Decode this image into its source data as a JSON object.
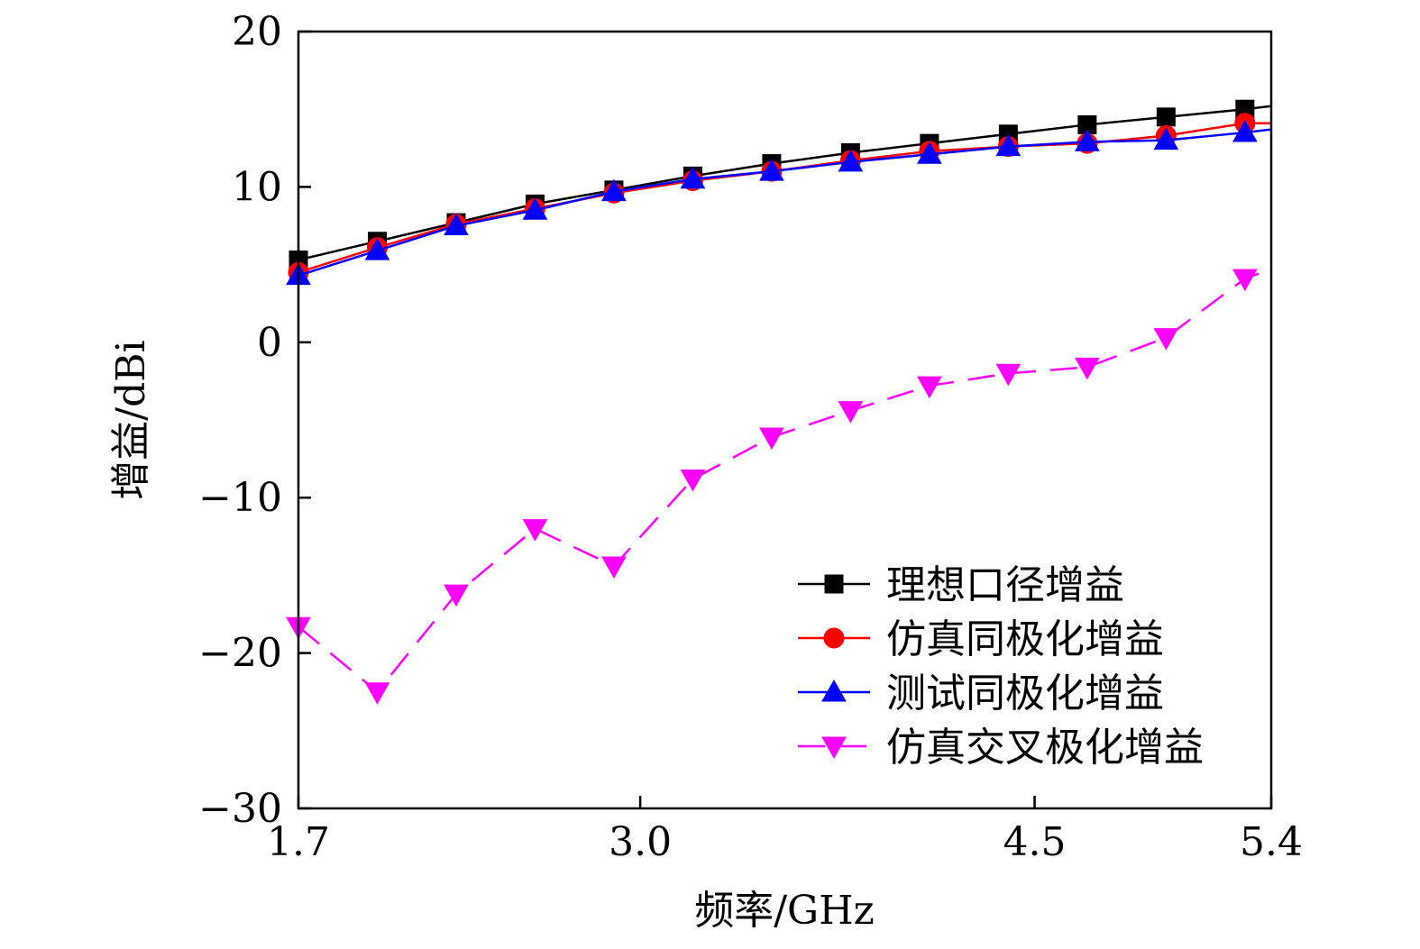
{
  "chart_data": {
    "type": "line",
    "title": "",
    "xlabel": "频率/GHz",
    "ylabel": "增益/dBi",
    "xlim": [
      1.7,
      5.4
    ],
    "ylim": [
      -30,
      20
    ],
    "xticks": [
      1.7,
      3.0,
      4.5,
      5.4
    ],
    "xtick_labels": [
      "1.7",
      "3.0",
      "4.5",
      "5.4"
    ],
    "yticks": [
      -30,
      -20,
      -10,
      0,
      10,
      20
    ],
    "ytick_labels": [
      "−30",
      "−20",
      "−10",
      "0",
      "10",
      "20"
    ],
    "grid": false,
    "legend_position": "lower-right",
    "series": [
      {
        "name": "理想口径增益",
        "color": "#000000",
        "marker": "square",
        "line": "solid",
        "x": [
          1.7,
          2.0,
          2.3,
          2.6,
          2.9,
          3.2,
          3.5,
          3.8,
          4.1,
          4.4,
          4.7,
          5.0,
          5.3,
          5.4
        ],
        "y": [
          5.3,
          6.5,
          7.7,
          8.9,
          9.8,
          10.7,
          11.5,
          12.2,
          12.8,
          13.4,
          14.0,
          14.5,
          15.0,
          15.2
        ]
      },
      {
        "name": "仿真同极化增益",
        "color": "#ff0000",
        "marker": "circle",
        "line": "solid",
        "x": [
          1.7,
          2.0,
          2.3,
          2.6,
          2.9,
          3.2,
          3.5,
          3.8,
          4.1,
          4.4,
          4.7,
          5.0,
          5.3,
          5.4
        ],
        "y": [
          4.5,
          6.1,
          7.6,
          8.6,
          9.6,
          10.4,
          11.0,
          11.7,
          12.3,
          12.6,
          12.8,
          13.3,
          14.1,
          14.1
        ]
      },
      {
        "name": "测试同极化增益",
        "color": "#0000ff",
        "marker": "triangle-up",
        "line": "solid",
        "x": [
          1.7,
          2.0,
          2.3,
          2.6,
          2.9,
          3.2,
          3.5,
          3.8,
          4.1,
          4.4,
          4.7,
          5.0,
          5.3,
          5.4
        ],
        "y": [
          4.3,
          5.9,
          7.5,
          8.5,
          9.7,
          10.5,
          11.0,
          11.6,
          12.1,
          12.6,
          12.9,
          13.0,
          13.5,
          13.7
        ]
      },
      {
        "name": "仿真交叉极化增益",
        "color": "#ff00ff",
        "marker": "triangle-down",
        "line": "dashed",
        "x": [
          1.7,
          2.0,
          2.3,
          2.6,
          2.9,
          3.2,
          3.5,
          3.8,
          4.1,
          4.4,
          4.7,
          5.0,
          5.3,
          5.4
        ],
        "y": [
          -18.3,
          -22.5,
          -16.2,
          -12.0,
          -14.4,
          -8.8,
          -6.1,
          -4.4,
          -2.8,
          -2.0,
          -1.6,
          0.3,
          4.1,
          4.7
        ]
      }
    ]
  }
}
